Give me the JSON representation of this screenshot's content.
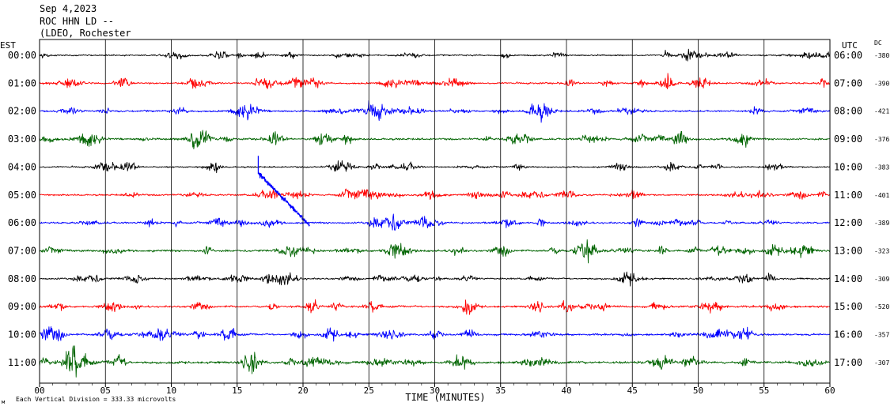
{
  "header": {
    "date": "Sep 4,2023",
    "station": "ROC HHN LD --",
    "network": "(LDEO, Rochester"
  },
  "left_axis_label": "EST",
  "right_axis_label": "UTC",
  "dc_label": "DC",
  "xlabel": "TIME (MINUTES)",
  "scale_note": "Each Vertical Division = 333.33 microvolts",
  "corner_mark": "м",
  "colors": {
    "black": "#000000",
    "red": "#ff0000",
    "blue": "#0000ff",
    "green": "#006400"
  },
  "chart_data": {
    "type": "line",
    "title": "Sep 4,2023 ROC HHN LD -- (LDEO, Rochester",
    "xlabel": "TIME (MINUTES)",
    "xlim": [
      0,
      60
    ],
    "x_ticks": [
      "00",
      "05",
      "10",
      "15",
      "20",
      "25",
      "30",
      "35",
      "40",
      "45",
      "50",
      "55",
      "60"
    ],
    "rows": [
      {
        "est": "00:00",
        "utc": "06:00",
        "dc": "-380",
        "color": "black",
        "amplitude": 0.55
      },
      {
        "est": "01:00",
        "utc": "07:00",
        "dc": "-390",
        "color": "red",
        "amplitude": 0.7
      },
      {
        "est": "02:00",
        "utc": "08:00",
        "dc": "-421",
        "color": "blue",
        "amplitude": 0.7
      },
      {
        "est": "03:00",
        "utc": "09:00",
        "dc": "-376",
        "color": "green",
        "amplitude": 0.8
      },
      {
        "est": "04:00",
        "utc": "10:00",
        "dc": "-383",
        "color": "black",
        "amplitude": 0.6
      },
      {
        "est": "05:00",
        "utc": "11:00",
        "dc": "-401",
        "color": "red",
        "amplitude": 0.7
      },
      {
        "est": "06:00",
        "utc": "12:00",
        "dc": "-389",
        "color": "blue",
        "amplitude": 0.75
      },
      {
        "est": "07:00",
        "utc": "13:00",
        "dc": "-323",
        "color": "green",
        "amplitude": 0.9
      },
      {
        "est": "08:00",
        "utc": "14:00",
        "dc": "-309",
        "color": "black",
        "amplitude": 0.7
      },
      {
        "est": "09:00",
        "utc": "15:00",
        "dc": "-520",
        "color": "red",
        "amplitude": 0.85
      },
      {
        "est": "10:00",
        "utc": "16:00",
        "dc": "-357",
        "color": "blue",
        "amplitude": 0.8
      },
      {
        "est": "11:00",
        "utc": "17:00",
        "dc": "-307",
        "color": "green",
        "amplitude": 1.0
      }
    ],
    "grid": true
  }
}
